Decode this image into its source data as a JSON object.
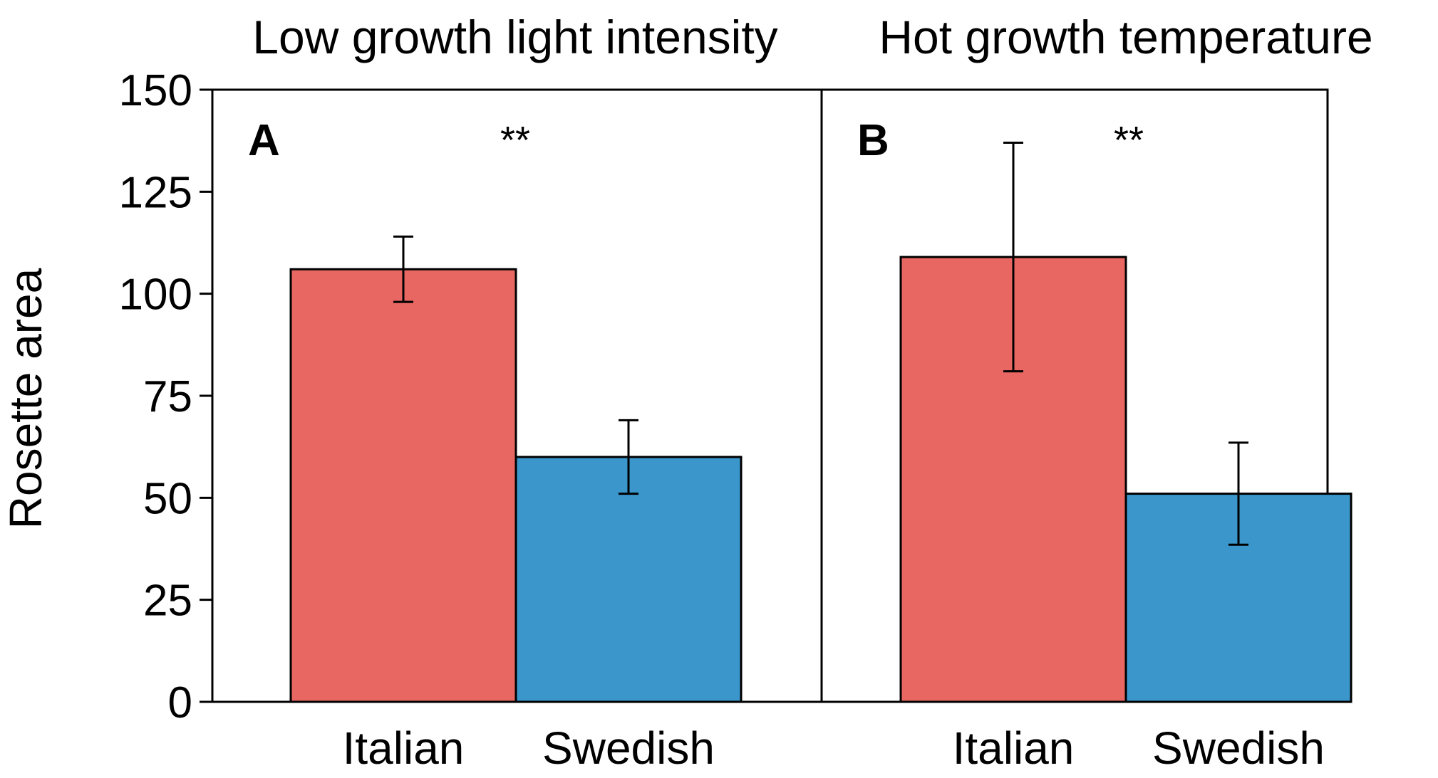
{
  "chart_data": {
    "type": "bar",
    "ylabel": "Rosette area",
    "ylim": [
      0,
      150
    ],
    "yticks": [
      0,
      25,
      50,
      75,
      100,
      125,
      150
    ],
    "colors": {
      "Italian": "#e96762",
      "Swedish": "#3b97cb"
    },
    "panels": [
      {
        "letter": "A",
        "title": "Low growth light intensity",
        "significance": "**",
        "categories": [
          "Italian",
          "Swedish"
        ],
        "values": [
          106,
          60
        ],
        "errors": [
          8,
          9
        ]
      },
      {
        "letter": "B",
        "title": "Hot growth temperature",
        "significance": "**",
        "categories": [
          "Italian",
          "Swedish"
        ],
        "values": [
          109,
          51
        ],
        "errors": [
          28,
          12.5
        ]
      }
    ]
  }
}
